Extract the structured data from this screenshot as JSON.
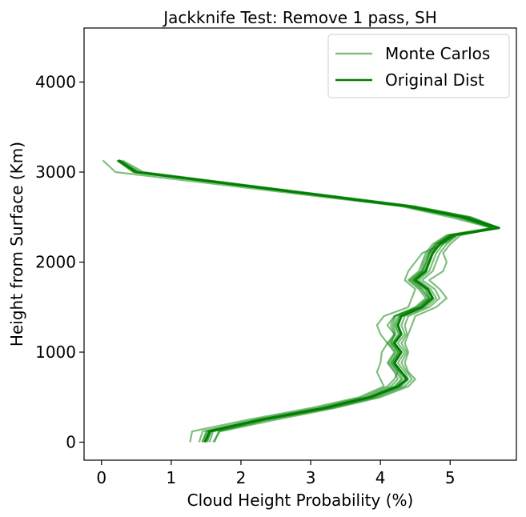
{
  "colors": {
    "monte_carlo": "#008000",
    "original": "#008000"
  },
  "chart_data": {
    "type": "line",
    "title": "Jackknife Test: Remove 1 pass, SH",
    "xlabel": "Cloud Height Probability (%)",
    "ylabel": "Height from Surface (Km)",
    "xlim": [
      -0.25,
      5.95
    ],
    "ylim": [
      -200,
      4600
    ],
    "xticks": [
      "0",
      "1",
      "2",
      "3",
      "4",
      "5"
    ],
    "yticks": [
      "0",
      "1000",
      "2000",
      "3000",
      "4000"
    ],
    "grid": false,
    "legend_position": "top-right",
    "legend": [
      {
        "label": "Monte Carlos",
        "style": "translucent"
      },
      {
        "label": "Original Dist",
        "style": "solid"
      }
    ],
    "heights": [
      0,
      120,
      250,
      380,
      500,
      620,
      700,
      780,
      880,
      1000,
      1100,
      1200,
      1300,
      1400,
      1500,
      1600,
      1700,
      1800,
      1900,
      2000,
      2100,
      2200,
      2300,
      2380,
      2500,
      2620,
      3000,
      3130
    ],
    "series": [
      {
        "name": "Original Dist",
        "x": [
          1.48,
          1.55,
          2.3,
          3.2,
          3.85,
          4.25,
          4.38,
          4.3,
          4.2,
          4.3,
          4.2,
          4.3,
          4.25,
          4.3,
          4.6,
          4.75,
          4.68,
          4.5,
          4.65,
          4.7,
          4.75,
          4.85,
          5.05,
          5.7,
          5.2,
          4.4,
          0.5,
          0.25
        ]
      },
      {
        "x": [
          1.27,
          1.3,
          2.1,
          3.0,
          3.7,
          4.05,
          4.0,
          3.95,
          4.0,
          4.02,
          4.1,
          4.0,
          3.95,
          4.05,
          4.4,
          4.45,
          4.5,
          4.35,
          4.4,
          4.5,
          4.6,
          4.9,
          5.1,
          5.6,
          5.0,
          4.3,
          0.2,
          0.02
        ]
      },
      {
        "x": [
          1.6,
          1.7,
          2.5,
          3.35,
          4.0,
          4.4,
          4.5,
          4.4,
          4.35,
          4.4,
          4.35,
          4.4,
          4.45,
          4.5,
          4.8,
          4.95,
          4.85,
          4.7,
          4.9,
          4.95,
          4.9,
          5.0,
          5.15,
          5.7,
          5.3,
          4.5,
          0.6,
          0.3
        ]
      },
      {
        "x": [
          1.45,
          1.5,
          2.25,
          3.15,
          3.8,
          4.15,
          4.25,
          4.2,
          4.1,
          4.2,
          4.1,
          4.2,
          4.15,
          4.2,
          4.55,
          4.7,
          4.6,
          4.45,
          4.6,
          4.65,
          4.7,
          4.8,
          5.0,
          5.65,
          5.1,
          4.35,
          0.45,
          0.22
        ]
      },
      {
        "x": [
          1.55,
          1.6,
          2.35,
          3.25,
          3.9,
          4.3,
          4.4,
          4.35,
          4.25,
          4.35,
          4.25,
          4.35,
          4.3,
          4.35,
          4.65,
          4.8,
          4.72,
          4.55,
          4.7,
          4.75,
          4.8,
          4.9,
          5.08,
          5.7,
          5.25,
          4.45,
          0.52,
          0.25
        ]
      },
      {
        "x": [
          1.5,
          1.58,
          2.32,
          3.22,
          3.88,
          4.28,
          4.36,
          4.28,
          4.18,
          4.28,
          4.18,
          4.28,
          4.22,
          4.28,
          4.58,
          4.72,
          4.66,
          4.48,
          4.62,
          4.68,
          4.72,
          4.82,
          5.02,
          5.68,
          5.18,
          4.42,
          0.5,
          0.24
        ]
      },
      {
        "x": [
          1.4,
          1.45,
          2.2,
          3.1,
          3.75,
          4.1,
          4.2,
          4.25,
          4.15,
          4.25,
          4.15,
          4.2,
          4.1,
          4.2,
          4.5,
          4.65,
          4.55,
          4.4,
          4.55,
          4.6,
          4.65,
          4.75,
          4.95,
          5.6,
          5.15,
          4.38,
          0.48,
          0.23
        ]
      },
      {
        "x": [
          1.52,
          1.56,
          2.28,
          3.18,
          3.86,
          4.22,
          4.32,
          4.26,
          4.16,
          4.26,
          4.16,
          4.26,
          4.2,
          4.26,
          4.56,
          4.7,
          4.64,
          4.46,
          4.6,
          4.66,
          4.7,
          4.8,
          5.0,
          5.66,
          5.16,
          4.4,
          0.49,
          0.24
        ]
      },
      {
        "x": [
          1.62,
          1.68,
          2.4,
          3.3,
          3.95,
          4.35,
          4.45,
          4.38,
          4.3,
          4.38,
          4.3,
          4.38,
          4.35,
          4.4,
          4.7,
          4.85,
          4.78,
          4.6,
          4.75,
          4.8,
          4.85,
          4.95,
          5.1,
          5.7,
          5.28,
          4.48,
          0.55,
          0.27
        ]
      },
      {
        "x": [
          1.44,
          1.52,
          2.27,
          3.17,
          3.83,
          4.2,
          4.3,
          4.22,
          4.12,
          4.22,
          4.12,
          4.22,
          4.18,
          4.22,
          4.52,
          4.68,
          4.58,
          4.42,
          4.58,
          4.62,
          4.68,
          4.78,
          4.98,
          5.62,
          5.12,
          4.36,
          0.47,
          0.23
        ]
      }
    ]
  }
}
